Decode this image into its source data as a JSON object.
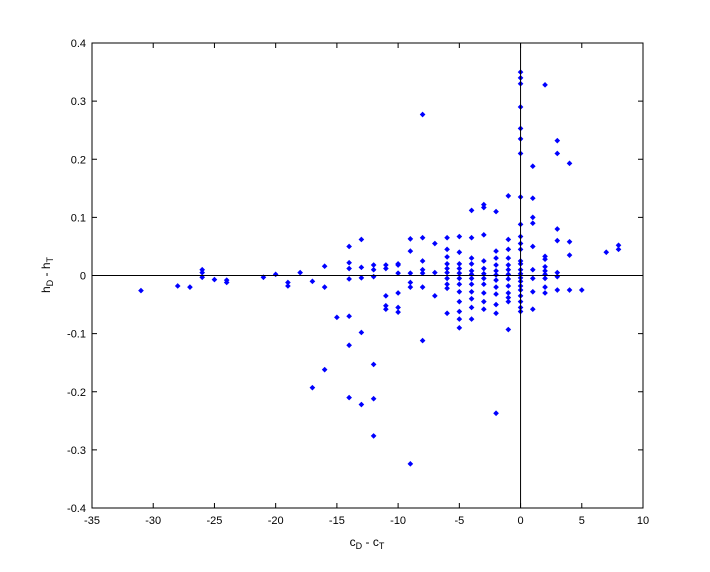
{
  "chart_data": {
    "type": "scatter",
    "xlabel": "c_D - c_T",
    "ylabel": "h_D - h_T",
    "xlabel_parts": {
      "base1": "c",
      "sub1": "D",
      "sep": " - ",
      "base2": "c",
      "sub2": "T"
    },
    "ylabel_parts": {
      "base1": "h",
      "sub1": "D",
      "sep": " - ",
      "base2": "h",
      "sub2": "T"
    },
    "xlim": [
      -35,
      10
    ],
    "ylim": [
      -0.4,
      0.4
    ],
    "xticks": [
      -35,
      -30,
      -25,
      -20,
      -15,
      -10,
      -5,
      0,
      5,
      10
    ],
    "yticks": [
      -0.4,
      -0.3,
      -0.2,
      -0.1,
      0,
      0.1,
      0.2,
      0.3,
      0.4
    ],
    "xtick_labels": [
      "-35",
      "-30",
      "-25",
      "-20",
      "-15",
      "-10",
      "-5",
      "0",
      "5",
      "10"
    ],
    "ytick_labels": [
      "-0.4",
      "-0.3",
      "-0.2",
      "-0.1",
      "0",
      "0.1",
      "0.2",
      "0.3",
      "0.4"
    ],
    "reference_lines": {
      "x": 0,
      "y": 0
    },
    "grid": false,
    "marker_color": "#0000ff",
    "x": [
      -31,
      -28,
      -27,
      -26,
      -26,
      -26,
      -25,
      -24,
      -24,
      -21,
      -20,
      -19,
      -19,
      -18,
      -17,
      -17,
      -16,
      -16,
      -16,
      -15,
      -14,
      -14,
      -14,
      -14,
      -14,
      -14,
      -14,
      -13,
      -13,
      -13,
      -13,
      -13,
      -12,
      -12,
      -12,
      -12,
      -12,
      -12,
      -11,
      -11,
      -11,
      -11,
      -11,
      -10,
      -10,
      -10,
      -10,
      -10,
      -10,
      -9,
      -9,
      -9,
      -9,
      -9,
      -9,
      -8,
      -8,
      -8,
      -8,
      -8,
      -8,
      -8,
      -7,
      -7,
      -7,
      -6,
      -6,
      -6,
      -6,
      -6,
      -6,
      -6,
      -6,
      -6,
      -6,
      -5,
      -5,
      -5,
      -5,
      -5,
      -5,
      -5,
      -5,
      -5,
      -5,
      -5,
      -5,
      -4,
      -4,
      -4,
      -4,
      -4,
      -4,
      -4,
      -4,
      -4,
      -4,
      -4,
      -4,
      -3,
      -3,
      -3,
      -3,
      -3,
      -3,
      -3,
      -3,
      -3,
      -3,
      -3,
      -2,
      -2,
      -2,
      -2,
      -2,
      -2,
      -2,
      -2,
      -2,
      -2,
      -2,
      -2,
      -1,
      -1,
      -1,
      -1,
      -1,
      -1,
      -1,
      -1,
      -1,
      -1,
      -1,
      -1,
      -1,
      0,
      0,
      0,
      0,
      0,
      0,
      0,
      0,
      0,
      0,
      0,
      0,
      0,
      0,
      0,
      0,
      0,
      0,
      0,
      0,
      0,
      0,
      0,
      0,
      1,
      1,
      1,
      1,
      1,
      1,
      1,
      1,
      1,
      2,
      2,
      2,
      2,
      2,
      2,
      2,
      2,
      2,
      3,
      3,
      3,
      3,
      3,
      3,
      3,
      4,
      4,
      4,
      4,
      5,
      7,
      8,
      8
    ],
    "y": [
      -0.026,
      -0.018,
      -0.02,
      0.01,
      0.005,
      -0.003,
      -0.007,
      -0.008,
      -0.012,
      -0.003,
      0.002,
      -0.012,
      -0.018,
      0.005,
      -0.01,
      -0.193,
      0.016,
      -0.02,
      -0.162,
      -0.072,
      0.05,
      0.022,
      0.012,
      -0.006,
      -0.07,
      -0.12,
      -0.21,
      0.062,
      0.014,
      -0.004,
      -0.098,
      -0.222,
      0.018,
      0.01,
      -0.002,
      -0.153,
      -0.212,
      -0.276,
      0.018,
      0.012,
      -0.035,
      -0.052,
      -0.058,
      0.02,
      0.018,
      0.004,
      -0.03,
      -0.055,
      -0.063,
      0.063,
      0.042,
      0.004,
      -0.012,
      -0.02,
      -0.324,
      0.277,
      0.065,
      0.025,
      0.01,
      0.004,
      -0.02,
      -0.112,
      0.055,
      0.005,
      -0.035,
      0.065,
      0.045,
      0.032,
      0.02,
      0.012,
      0.005,
      -0.005,
      -0.015,
      -0.022,
      -0.065,
      0.067,
      0.04,
      0.02,
      0.012,
      0.004,
      -0.005,
      -0.015,
      -0.028,
      -0.045,
      -0.062,
      -0.075,
      -0.09,
      0.112,
      0.065,
      0.03,
      0.02,
      0.008,
      0.002,
      -0.005,
      -0.015,
      -0.028,
      -0.04,
      -0.055,
      -0.075,
      0.122,
      0.117,
      0.07,
      0.025,
      0.012,
      0.003,
      -0.005,
      -0.015,
      -0.03,
      -0.045,
      -0.058,
      0.11,
      0.042,
      0.03,
      0.018,
      0.008,
      0.001,
      -0.008,
      -0.02,
      -0.032,
      -0.05,
      -0.065,
      -0.237,
      0.137,
      0.062,
      0.045,
      0.03,
      0.018,
      0.01,
      0.002,
      -0.006,
      -0.018,
      -0.03,
      -0.038,
      -0.045,
      -0.093,
      0.35,
      0.34,
      0.33,
      0.29,
      0.253,
      0.235,
      0.21,
      0.135,
      0.088,
      0.067,
      0.055,
      0.045,
      0.025,
      0.02,
      0.01,
      0.003,
      -0.004,
      -0.01,
      -0.018,
      -0.025,
      -0.035,
      -0.045,
      -0.055,
      -0.062,
      0.188,
      0.133,
      0.1,
      0.09,
      0.05,
      0.01,
      -0.005,
      -0.028,
      -0.058,
      0.328,
      0.033,
      0.028,
      0.015,
      0.008,
      0.002,
      -0.005,
      -0.02,
      -0.03,
      0.232,
      0.21,
      0.08,
      0.06,
      0.005,
      -0.002,
      -0.025,
      0.193,
      0.058,
      0.035,
      -0.025,
      -0.025,
      0.04,
      0.052,
      0.045
    ]
  }
}
